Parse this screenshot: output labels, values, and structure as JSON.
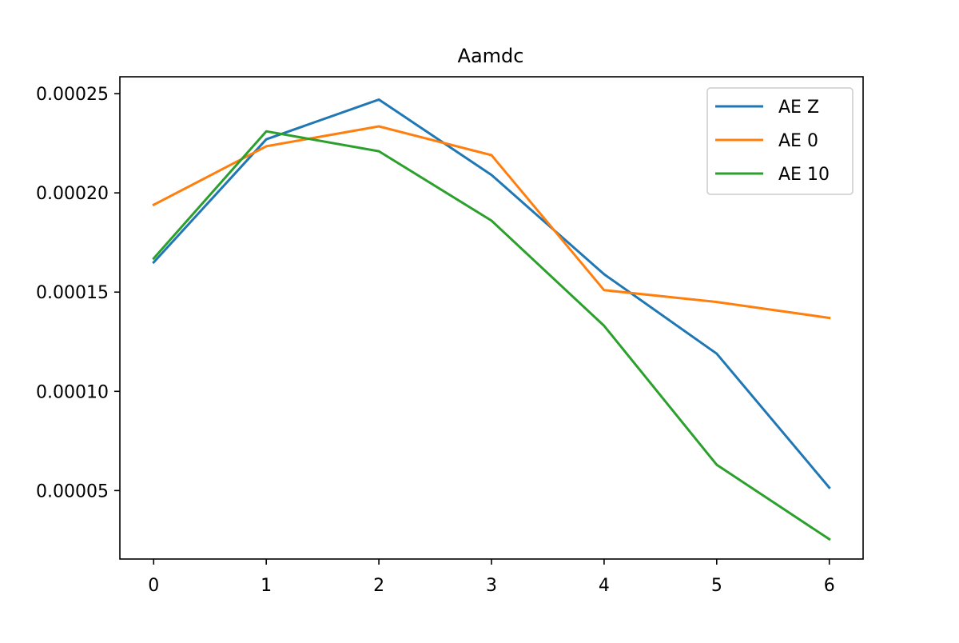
{
  "chart_data": {
    "type": "line",
    "title": "Aamdc",
    "xlabel": "",
    "ylabel": "",
    "x": [
      0,
      1,
      2,
      3,
      4,
      5,
      6
    ],
    "xticks": [
      "0",
      "1",
      "2",
      "3",
      "4",
      "5",
      "6"
    ],
    "yticks": [
      "0.00005",
      "0.00010",
      "0.00015",
      "0.00020",
      "0.00025"
    ],
    "ytick_values": [
      5e-05,
      0.0001,
      0.00015,
      0.0002,
      0.00025
    ],
    "xlim": [
      -0.3,
      6.3
    ],
    "ylim": [
      1.55e-05,
      0.0002585
    ],
    "grid": false,
    "legend_position": "top-right",
    "series": [
      {
        "name": "AE Z",
        "color": "#1f77b4",
        "values": [
          0.000165,
          0.000227,
          0.000247,
          0.000209,
          0.000159,
          0.000119,
          5.15e-05
        ]
      },
      {
        "name": "AE 0",
        "color": "#ff7f0e",
        "values": [
          0.000194,
          0.0002235,
          0.0002335,
          0.000219,
          0.000151,
          0.000145,
          0.000137
        ]
      },
      {
        "name": "AE 10",
        "color": "#2ca02c",
        "values": [
          0.000167,
          0.000231,
          0.000221,
          0.000186,
          0.000133,
          6.3e-05,
          2.55e-05
        ]
      }
    ]
  }
}
